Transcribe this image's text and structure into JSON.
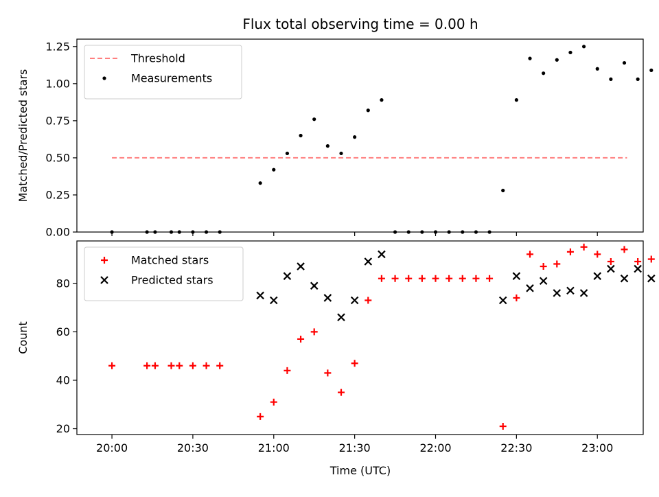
{
  "chart_data": {
    "type": "scatter",
    "title": "Flux total observing time = 0.00 h",
    "xlabel": "Time (UTC)",
    "xtick_labels": [
      "20:00",
      "20:30",
      "21:00",
      "21:30",
      "22:00",
      "22:30",
      "23:00"
    ],
    "xtick_minutes": [
      1200,
      1230,
      1260,
      1290,
      1320,
      1350,
      1380
    ],
    "xlim_minutes": [
      1187,
      1397
    ],
    "panels": [
      {
        "ylabel": "Matched/Predicted stars",
        "ylim": [
          0,
          1.3
        ],
        "yticks": [
          0.0,
          0.25,
          0.5,
          0.75,
          1.0,
          1.25
        ],
        "ytick_labels": [
          "0.00",
          "0.25",
          "0.50",
          "0.75",
          "1.00",
          "1.25"
        ],
        "legend_position": "upper-left",
        "threshold": {
          "name": "Threshold",
          "value": 0.5,
          "x_start": 1200,
          "x_end": 1391,
          "color": "#ff7f7f",
          "style": "dashed"
        },
        "series": [
          {
            "name": "Measurements",
            "marker": "dot",
            "color": "#000000",
            "points": [
              [
                1200,
                0.0
              ],
              [
                1213,
                0.0
              ],
              [
                1216,
                0.0
              ],
              [
                1222,
                0.0
              ],
              [
                1225,
                0.0
              ],
              [
                1230,
                0.0
              ],
              [
                1235,
                0.0
              ],
              [
                1240,
                0.0
              ],
              [
                1255,
                0.33
              ],
              [
                1260,
                0.42
              ],
              [
                1265,
                0.53
              ],
              [
                1270,
                0.65
              ],
              [
                1275,
                0.76
              ],
              [
                1280,
                0.58
              ],
              [
                1285,
                0.53
              ],
              [
                1290,
                0.64
              ],
              [
                1295,
                0.82
              ],
              [
                1300,
                0.89
              ],
              [
                1305,
                0.0
              ],
              [
                1310,
                0.0
              ],
              [
                1315,
                0.0
              ],
              [
                1320,
                0.0
              ],
              [
                1325,
                0.0
              ],
              [
                1330,
                0.0
              ],
              [
                1335,
                0.0
              ],
              [
                1340,
                0.0
              ],
              [
                1345,
                0.28
              ],
              [
                1350,
                0.89
              ],
              [
                1355,
                1.17
              ],
              [
                1360,
                1.07
              ],
              [
                1365,
                1.16
              ],
              [
                1370,
                1.21
              ],
              [
                1375,
                1.25
              ],
              [
                1380,
                1.1
              ],
              [
                1385,
                1.03
              ],
              [
                1390,
                1.14
              ],
              [
                1395,
                1.03
              ],
              [
                1400,
                1.09
              ]
            ]
          }
        ]
      },
      {
        "ylabel": "Count",
        "ylim": [
          17.6,
          97.5
        ],
        "yticks": [
          20,
          40,
          60,
          80
        ],
        "ytick_labels": [
          "20",
          "40",
          "60",
          "80"
        ],
        "legend_position": "upper-left",
        "series": [
          {
            "name": "Matched stars",
            "marker": "plus",
            "color": "#ff0000",
            "points": [
              [
                1200,
                46
              ],
              [
                1213,
                46
              ],
              [
                1216,
                46
              ],
              [
                1222,
                46
              ],
              [
                1225,
                46
              ],
              [
                1230,
                46
              ],
              [
                1235,
                46
              ],
              [
                1240,
                46
              ],
              [
                1255,
                25
              ],
              [
                1260,
                31
              ],
              [
                1265,
                44
              ],
              [
                1270,
                57
              ],
              [
                1275,
                60
              ],
              [
                1280,
                43
              ],
              [
                1285,
                35
              ],
              [
                1290,
                47
              ],
              [
                1295,
                73
              ],
              [
                1300,
                82
              ],
              [
                1305,
                82
              ],
              [
                1310,
                82
              ],
              [
                1315,
                82
              ],
              [
                1320,
                82
              ],
              [
                1325,
                82
              ],
              [
                1330,
                82
              ],
              [
                1335,
                82
              ],
              [
                1340,
                82
              ],
              [
                1345,
                21
              ],
              [
                1350,
                74
              ],
              [
                1355,
                92
              ],
              [
                1360,
                87
              ],
              [
                1365,
                88
              ],
              [
                1370,
                93
              ],
              [
                1375,
                95
              ],
              [
                1380,
                92
              ],
              [
                1385,
                89
              ],
              [
                1390,
                94
              ],
              [
                1395,
                89
              ],
              [
                1400,
                90
              ]
            ]
          },
          {
            "name": "Predicted stars",
            "marker": "x",
            "color": "#000000",
            "points": [
              [
                1255,
                75
              ],
              [
                1260,
                73
              ],
              [
                1265,
                83
              ],
              [
                1270,
                87
              ],
              [
                1275,
                79
              ],
              [
                1280,
                74
              ],
              [
                1285,
                66
              ],
              [
                1290,
                73
              ],
              [
                1295,
                89
              ],
              [
                1300,
                92
              ],
              [
                1345,
                73
              ],
              [
                1350,
                83
              ],
              [
                1355,
                78
              ],
              [
                1360,
                81
              ],
              [
                1365,
                76
              ],
              [
                1370,
                77
              ],
              [
                1375,
                76
              ],
              [
                1380,
                83
              ],
              [
                1385,
                86
              ],
              [
                1390,
                82
              ],
              [
                1395,
                86
              ],
              [
                1400,
                82
              ]
            ]
          }
        ]
      }
    ]
  }
}
